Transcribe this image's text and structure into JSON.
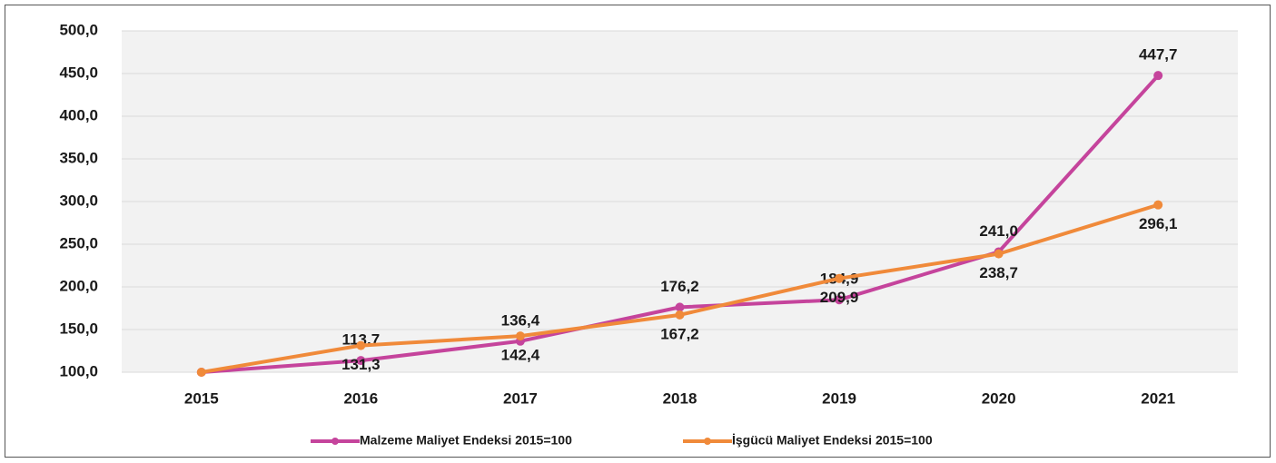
{
  "chart_data": {
    "type": "line",
    "categories": [
      "2015",
      "2016",
      "2017",
      "2018",
      "2019",
      "2020",
      "2021"
    ],
    "series": [
      {
        "name": "Malzeme Maliyet Endeksi 2015=100",
        "color": "#c5449c",
        "values": [
          100,
          113.7,
          136.4,
          176.2,
          184.9,
          241.0,
          447.7
        ],
        "value_labels": [
          null,
          "113,7",
          "136,4",
          "176,2",
          "184,9",
          "241,0",
          "447,7"
        ]
      },
      {
        "name": "İşgücü Maliyet Endeksi 2015=100",
        "color": "#f08a3a",
        "values": [
          100,
          131.3,
          142.4,
          167.2,
          209.9,
          238.7,
          296.1
        ],
        "value_labels": [
          null,
          "131,3",
          "142,4",
          "167,2",
          "209,9",
          "238,7",
          "296,1"
        ]
      }
    ],
    "ylim": [
      100,
      500
    ],
    "yticks": [
      {
        "value": 100,
        "label": "100,0"
      },
      {
        "value": 150,
        "label": "150,0"
      },
      {
        "value": 200,
        "label": "200,0"
      },
      {
        "value": 250,
        "label": "250,0"
      },
      {
        "value": 300,
        "label": "300,0"
      },
      {
        "value": 350,
        "label": "350,0"
      },
      {
        "value": 400,
        "label": "400,0"
      },
      {
        "value": 450,
        "label": "450,0"
      },
      {
        "value": 500,
        "label": "500,0"
      }
    ],
    "grid": true,
    "legend": "bottom"
  }
}
